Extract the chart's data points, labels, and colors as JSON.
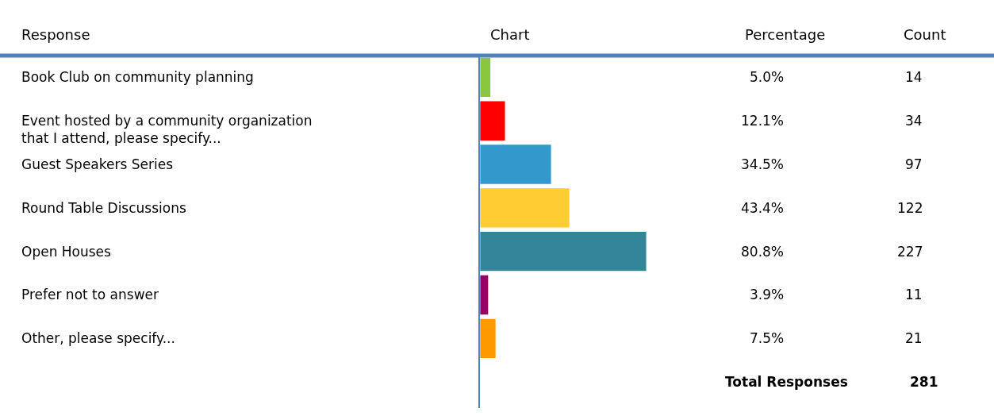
{
  "chart_data": {
    "type": "bar",
    "orientation": "horizontal",
    "categories": [
      "Book Club on community planning",
      "Event hosted by a community organization that I attend, please specify...",
      "Guest Speakers Series",
      "Round Table Discussions",
      "Open Houses",
      "Prefer not to answer",
      "Other, please specify..."
    ],
    "values": [
      5.0,
      12.1,
      34.5,
      43.4,
      80.8,
      3.9,
      7.5
    ],
    "colors": [
      "#8cc63f",
      "#ff0000",
      "#3399cc",
      "#ffcc33",
      "#33869a",
      "#990066",
      "#ff9900"
    ],
    "value_labels": [
      "5.0%",
      "12.1%",
      "34.5%",
      "43.4%",
      "80.8%",
      "3.9%",
      "7.5%"
    ],
    "xlim": [
      0,
      250
    ],
    "annotations": [
      "Response",
      "Chart",
      "Percentage",
      "Count",
      "14",
      "34",
      "97",
      "122",
      "227",
      "11",
      "21",
      "Total Responses",
      "281"
    ]
  }
}
